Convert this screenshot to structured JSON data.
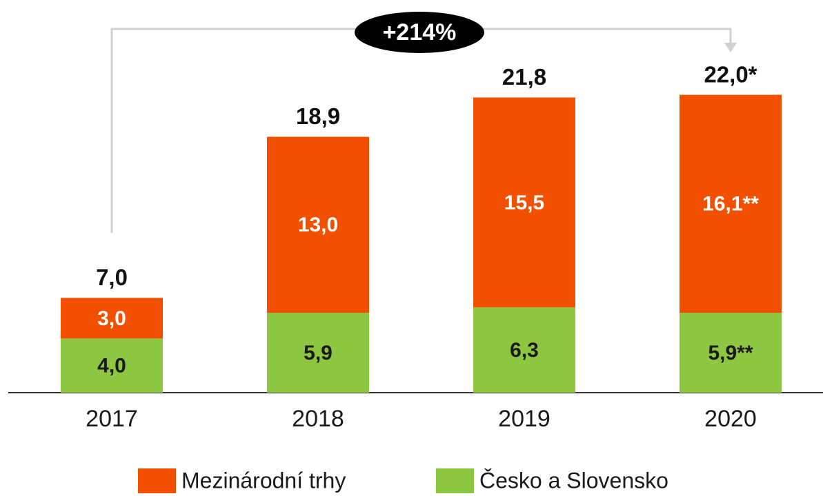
{
  "chart_data": {
    "type": "stacked_bar",
    "annotation": "+214%",
    "categories": [
      "2017",
      "2018",
      "2019",
      "2020"
    ],
    "series": [
      {
        "name": "Česko a Slovensko",
        "color": "#8dc641",
        "label_color": "#1a1a1a",
        "values": [
          4.0,
          5.9,
          6.3,
          5.9
        ],
        "value_labels": [
          "4,0",
          "5,9",
          "6,3",
          "5,9**"
        ]
      },
      {
        "name": "Mezinárodní trhy",
        "color": "#f05000",
        "label_color": "#ffffff",
        "values": [
          3.0,
          13.0,
          15.5,
          16.1
        ],
        "value_labels": [
          "3,0",
          "13,0",
          "15,5",
          "16,1**"
        ]
      }
    ],
    "totals": [
      7.0,
      18.9,
      21.8,
      22.0
    ],
    "total_labels": [
      "7,0",
      "18,9",
      "21,8",
      "22,0*"
    ],
    "ylim": [
      0,
      29
    ]
  }
}
